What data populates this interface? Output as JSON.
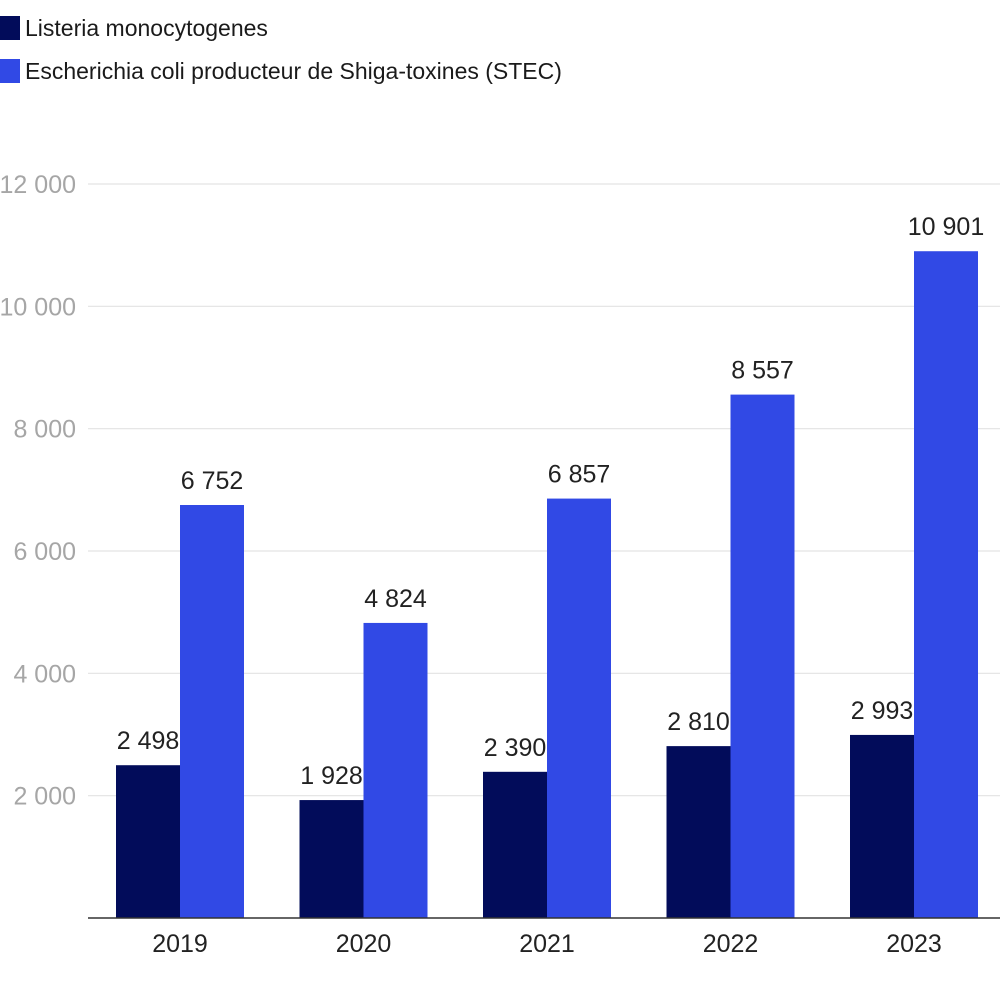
{
  "chart_data": {
    "type": "bar",
    "categories": [
      "2019",
      "2020",
      "2021",
      "2022",
      "2023"
    ],
    "series": [
      {
        "name": "Listeria monocytogenes",
        "color": "#020c5a",
        "values": [
          2498,
          1928,
          2390,
          2810,
          2993
        ],
        "labels": [
          "2 498",
          "1 928",
          "2 390",
          "2 810",
          "2 993"
        ]
      },
      {
        "name": "Escherichia coli producteur de Shiga-toxines (STEC)",
        "color": "#3149e5",
        "values": [
          6752,
          4824,
          6857,
          8557,
          10901
        ],
        "labels": [
          "6 752",
          "4 824",
          "6 857",
          "8 557",
          "10 901"
        ]
      }
    ],
    "ylim": [
      0,
      12000
    ],
    "yticks": [
      2000,
      4000,
      6000,
      8000,
      10000,
      12000
    ],
    "ytick_labels": [
      "2 000",
      "4 000",
      "6 000",
      "8 000",
      "10 000",
      "12 000"
    ],
    "grid": true,
    "legend_position": "top-left",
    "title": "",
    "xlabel": "",
    "ylabel": ""
  }
}
